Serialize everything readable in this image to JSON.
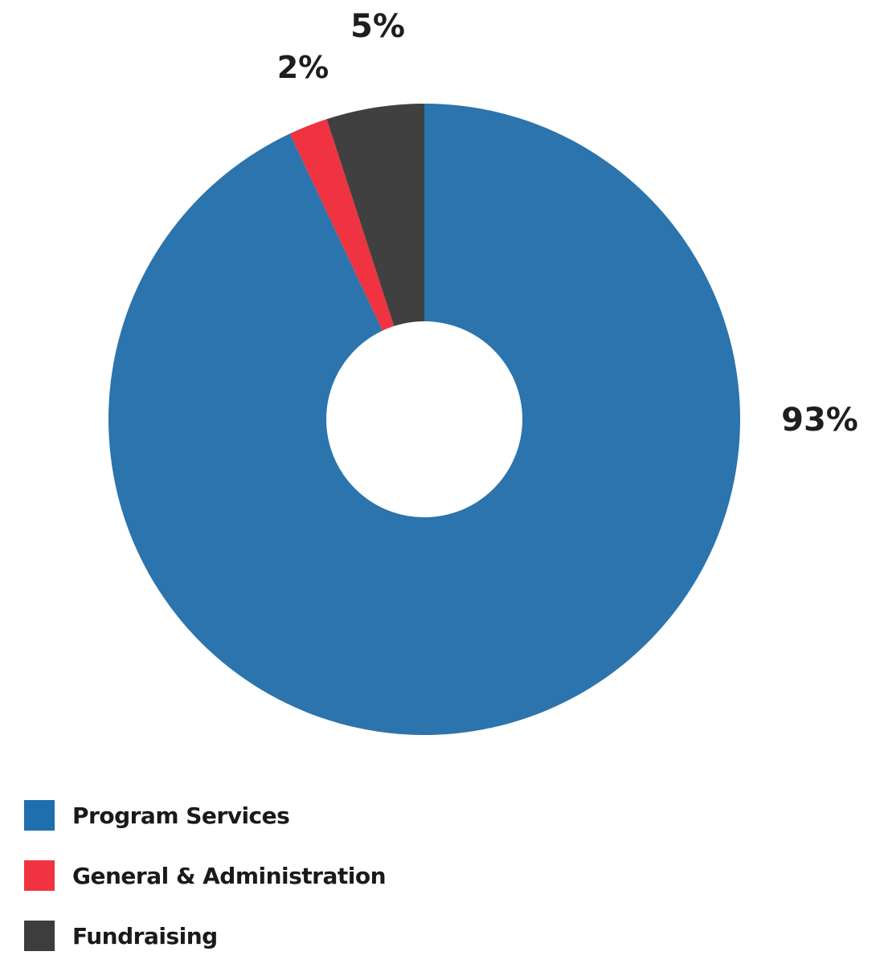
{
  "chart_data": {
    "type": "pie",
    "donut": true,
    "slices": [
      {
        "name": "Program Services",
        "value": 93,
        "label": "93%",
        "color": "#2b74ad"
      },
      {
        "name": "General & Administration",
        "value": 2,
        "label": "2%",
        "color": "#ef3340"
      },
      {
        "name": "Fundraising",
        "value": 5,
        "label": "5%",
        "color": "#404040"
      }
    ],
    "legend_position": "bottom-left"
  },
  "legend": {
    "items": [
      {
        "label": "Program Services",
        "color": "#1f6fae"
      },
      {
        "label": "General & Administration",
        "color": "#ef3340"
      },
      {
        "label": "Fundraising",
        "color": "#3d3d3d"
      }
    ]
  }
}
